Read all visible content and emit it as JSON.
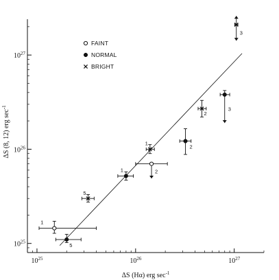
{
  "chart_data": {
    "type": "scatter",
    "title": "",
    "xlabel": {
      "main": "ΔS (Hα) erg sec",
      "sup": "-1"
    },
    "ylabel": {
      "main": "ΔS (8, 12) erg sec",
      "sup": "-1"
    },
    "xscale": "log",
    "yscale": "log",
    "xlim": [
      8e+24,
      2e+27
    ],
    "ylim": [
      8e+24,
      2.4e+27
    ],
    "xticks": [
      {
        "value": 1e+25,
        "mantissa": "10",
        "exp": "25"
      },
      {
        "value": 1e+26,
        "mantissa": "10",
        "exp": "26"
      },
      {
        "value": 1e+27,
        "mantissa": "10",
        "exp": "27"
      }
    ],
    "yticks": [
      {
        "value": 1e+25,
        "mantissa": "10",
        "exp": "25"
      },
      {
        "value": 1e+26,
        "mantissa": "10",
        "exp": "26"
      },
      {
        "value": 1e+27,
        "mantissa": "10",
        "exp": "27"
      }
    ],
    "grid": false,
    "legend_position": "top-left",
    "legend": [
      {
        "marker": "open-circle",
        "label": "FAINT"
      },
      {
        "marker": "filled-circle",
        "label": "NORMAL"
      },
      {
        "marker": "x",
        "label": "BRIGHT"
      }
    ],
    "fit_line": {
      "x": [
        1.7e+25,
        1.2e+27
      ],
      "y": [
        9.5e+24,
        1.04e+27
      ]
    },
    "points": [
      {
        "series": "FAINT",
        "x": 1.5e+25,
        "y": 1.45e+25,
        "xerr": [
          1.05e+25,
          4e+25
        ],
        "yerr": [
          1.28e+25,
          1.72e+25
        ],
        "label": "1",
        "arrow": "none"
      },
      {
        "series": "NORMAL",
        "x": 2e+25,
        "y": 1.1e+25,
        "xerr": [
          1.55e+25,
          2.8e+25
        ],
        "yerr": [
          1.02e+25,
          1.25e+25
        ],
        "label": "5",
        "arrow": "none"
      },
      {
        "series": "BRIGHT",
        "x": 3.3e+25,
        "y": 3e+25,
        "xerr": [
          2.85e+25,
          3.8e+25
        ],
        "yerr": [
          2.75e+25,
          3.3e+25
        ],
        "label": "5",
        "arrow": "none"
      },
      {
        "series": "NORMAL",
        "x": 8e+25,
        "y": 5.2e+25,
        "xerr": [
          6.6e+25,
          9.5e+25
        ],
        "yerr": [
          4.7e+25,
          5.75e+25
        ],
        "label": "1",
        "arrow": "none"
      },
      {
        "series": "BRIGHT",
        "x": 1.4e+26,
        "y": 1e+26,
        "xerr": [
          1.28e+26,
          1.55e+26
        ],
        "yerr": [
          9e+25,
          1.12e+26
        ],
        "label": "1",
        "arrow": "none"
      },
      {
        "series": "FAINT",
        "x": 1.45e+26,
        "y": 7e+25,
        "xerr": [
          1e+26,
          2.1e+26
        ],
        "yerr": [
          4.9e+25,
          7e+25
        ],
        "label": "2",
        "arrow": "down"
      },
      {
        "series": "NORMAL",
        "x": 3.2e+26,
        "y": 1.22e+26,
        "xerr": [
          2.8e+26,
          3.65e+26
        ],
        "yerr": [
          8.8e+25,
          1.65e+26
        ],
        "label": "2",
        "arrow": "none"
      },
      {
        "series": "BRIGHT",
        "x": 4.7e+26,
        "y": 2.7e+26,
        "xerr": [
          4.3e+26,
          5.2e+26
        ],
        "yerr": [
          2.2e+26,
          3.3e+26
        ],
        "label": "2",
        "arrow": "none"
      },
      {
        "series": "NORMAL",
        "x": 8e+26,
        "y": 3.8e+26,
        "xerr": [
          7.2e+26,
          9e+26
        ],
        "yerr": [
          1.9e+26,
          4.2e+26
        ],
        "label": "3",
        "arrow": "down"
      },
      {
        "series": "BRIGHT",
        "x": 1.05e+27,
        "y": 2.1e+27,
        "xerr": [
          1.01e+27,
          1.09e+27
        ],
        "yerr": [
          1.42e+27,
          2.6e+27
        ],
        "label": "3",
        "arrow": "both"
      }
    ]
  }
}
